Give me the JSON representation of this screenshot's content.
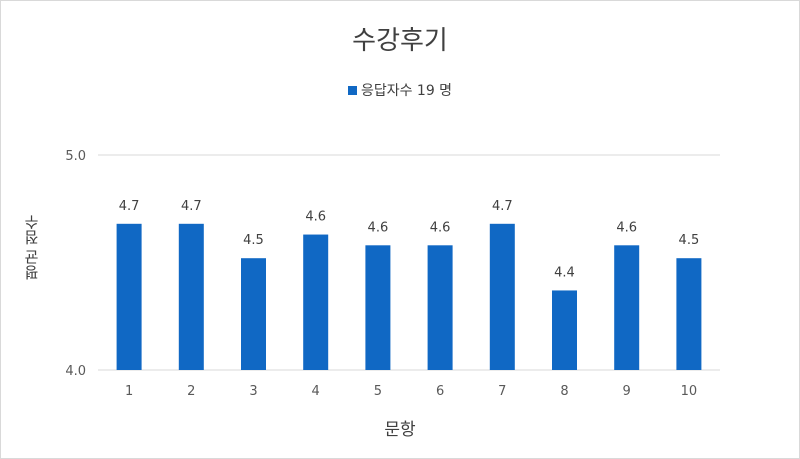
{
  "chart_data": {
    "type": "bar",
    "title": "수강후기",
    "legend": "응답자수 19 명",
    "legend_position": "top",
    "xlabel": "문항",
    "ylabel": "평균 점수",
    "ylim": [
      4.0,
      5.0
    ],
    "y_ticks": [
      "5.0",
      "4.0"
    ],
    "grid": true,
    "categories": [
      "1",
      "2",
      "3",
      "4",
      "5",
      "6",
      "7",
      "8",
      "9",
      "10"
    ],
    "values": [
      4.7,
      4.7,
      4.5,
      4.6,
      4.6,
      4.6,
      4.7,
      4.4,
      4.6,
      4.5
    ],
    "bar_heights": [
      4.68,
      4.68,
      4.52,
      4.63,
      4.58,
      4.58,
      4.68,
      4.37,
      4.58,
      4.52
    ],
    "bar_color": "#1068c4"
  }
}
